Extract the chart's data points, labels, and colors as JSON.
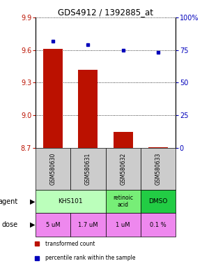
{
  "title": "GDS4912 / 1392885_at",
  "samples": [
    "GSM580630",
    "GSM580631",
    "GSM580632",
    "GSM580633"
  ],
  "bar_values": [
    9.61,
    9.42,
    8.85,
    8.705
  ],
  "bar_bottom": 8.7,
  "percentile_values": [
    82,
    79,
    75,
    73
  ],
  "ylim_left": [
    8.7,
    9.9
  ],
  "ylim_right": [
    0,
    100
  ],
  "yticks_left": [
    8.7,
    9.0,
    9.3,
    9.6,
    9.9
  ],
  "yticks_right": [
    0,
    25,
    50,
    75,
    100
  ],
  "yticklabels_right": [
    "0",
    "25",
    "50",
    "75",
    "100%"
  ],
  "bar_color": "#bb1100",
  "dot_color": "#0000bb",
  "agent_info": [
    {
      "cols": [
        0,
        1
      ],
      "label": "KHS101",
      "color": "#bbffbb"
    },
    {
      "cols": [
        2
      ],
      "label": "retinoic\nacid",
      "color": "#77ee77"
    },
    {
      "cols": [
        3
      ],
      "label": "DMSO",
      "color": "#22cc44"
    }
  ],
  "dose_labels": [
    "5 uM",
    "1.7 uM",
    "1 uM",
    "0.1 %"
  ],
  "dose_color": "#ee88ee",
  "sample_bg_color": "#cccccc",
  "left_label_color": "#000000"
}
